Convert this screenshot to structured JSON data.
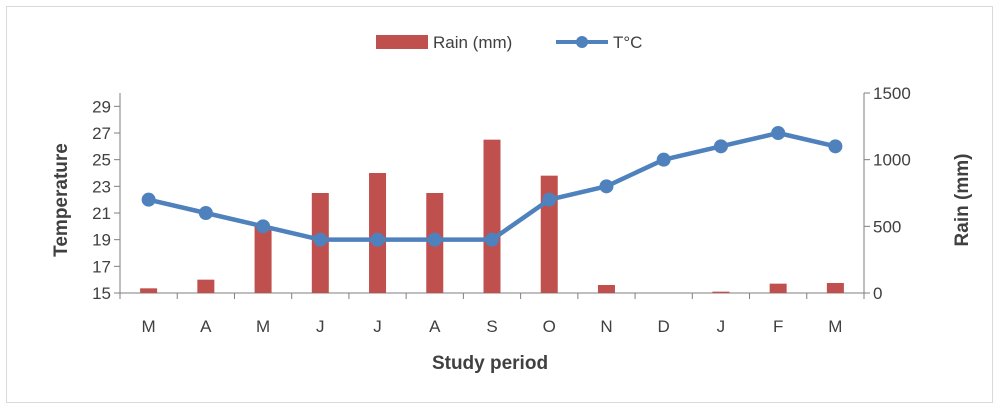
{
  "chart_data": {
    "type": "bar+line",
    "categories": [
      "M",
      "A",
      "M",
      "J",
      "J",
      "A",
      "S",
      "O",
      "N",
      "D",
      "J",
      "F",
      "M"
    ],
    "series": [
      {
        "name": "Rain (mm)",
        "type": "bar",
        "axis": "right",
        "color": "#c0504d",
        "values": [
          35,
          100,
          500,
          750,
          900,
          750,
          1150,
          880,
          60,
          0,
          10,
          70,
          75
        ]
      },
      {
        "name": "T°C",
        "type": "line",
        "axis": "left",
        "color": "#4f81bd",
        "values": [
          22,
          21,
          20,
          19,
          19,
          19,
          19,
          22,
          23,
          25,
          26,
          27,
          26
        ]
      }
    ],
    "xlabel": "Study period",
    "ylabel": "Temperature",
    "y2label": "Rain (mm)",
    "ylim": [
      15,
      30
    ],
    "y2lim": [
      0,
      1500
    ],
    "yticks": [
      "15",
      "17",
      "19",
      "21",
      "23",
      "25",
      "27",
      "29"
    ],
    "y2ticks": [
      "0",
      "500",
      "1000",
      "1500"
    ],
    "legend_position": "top"
  }
}
